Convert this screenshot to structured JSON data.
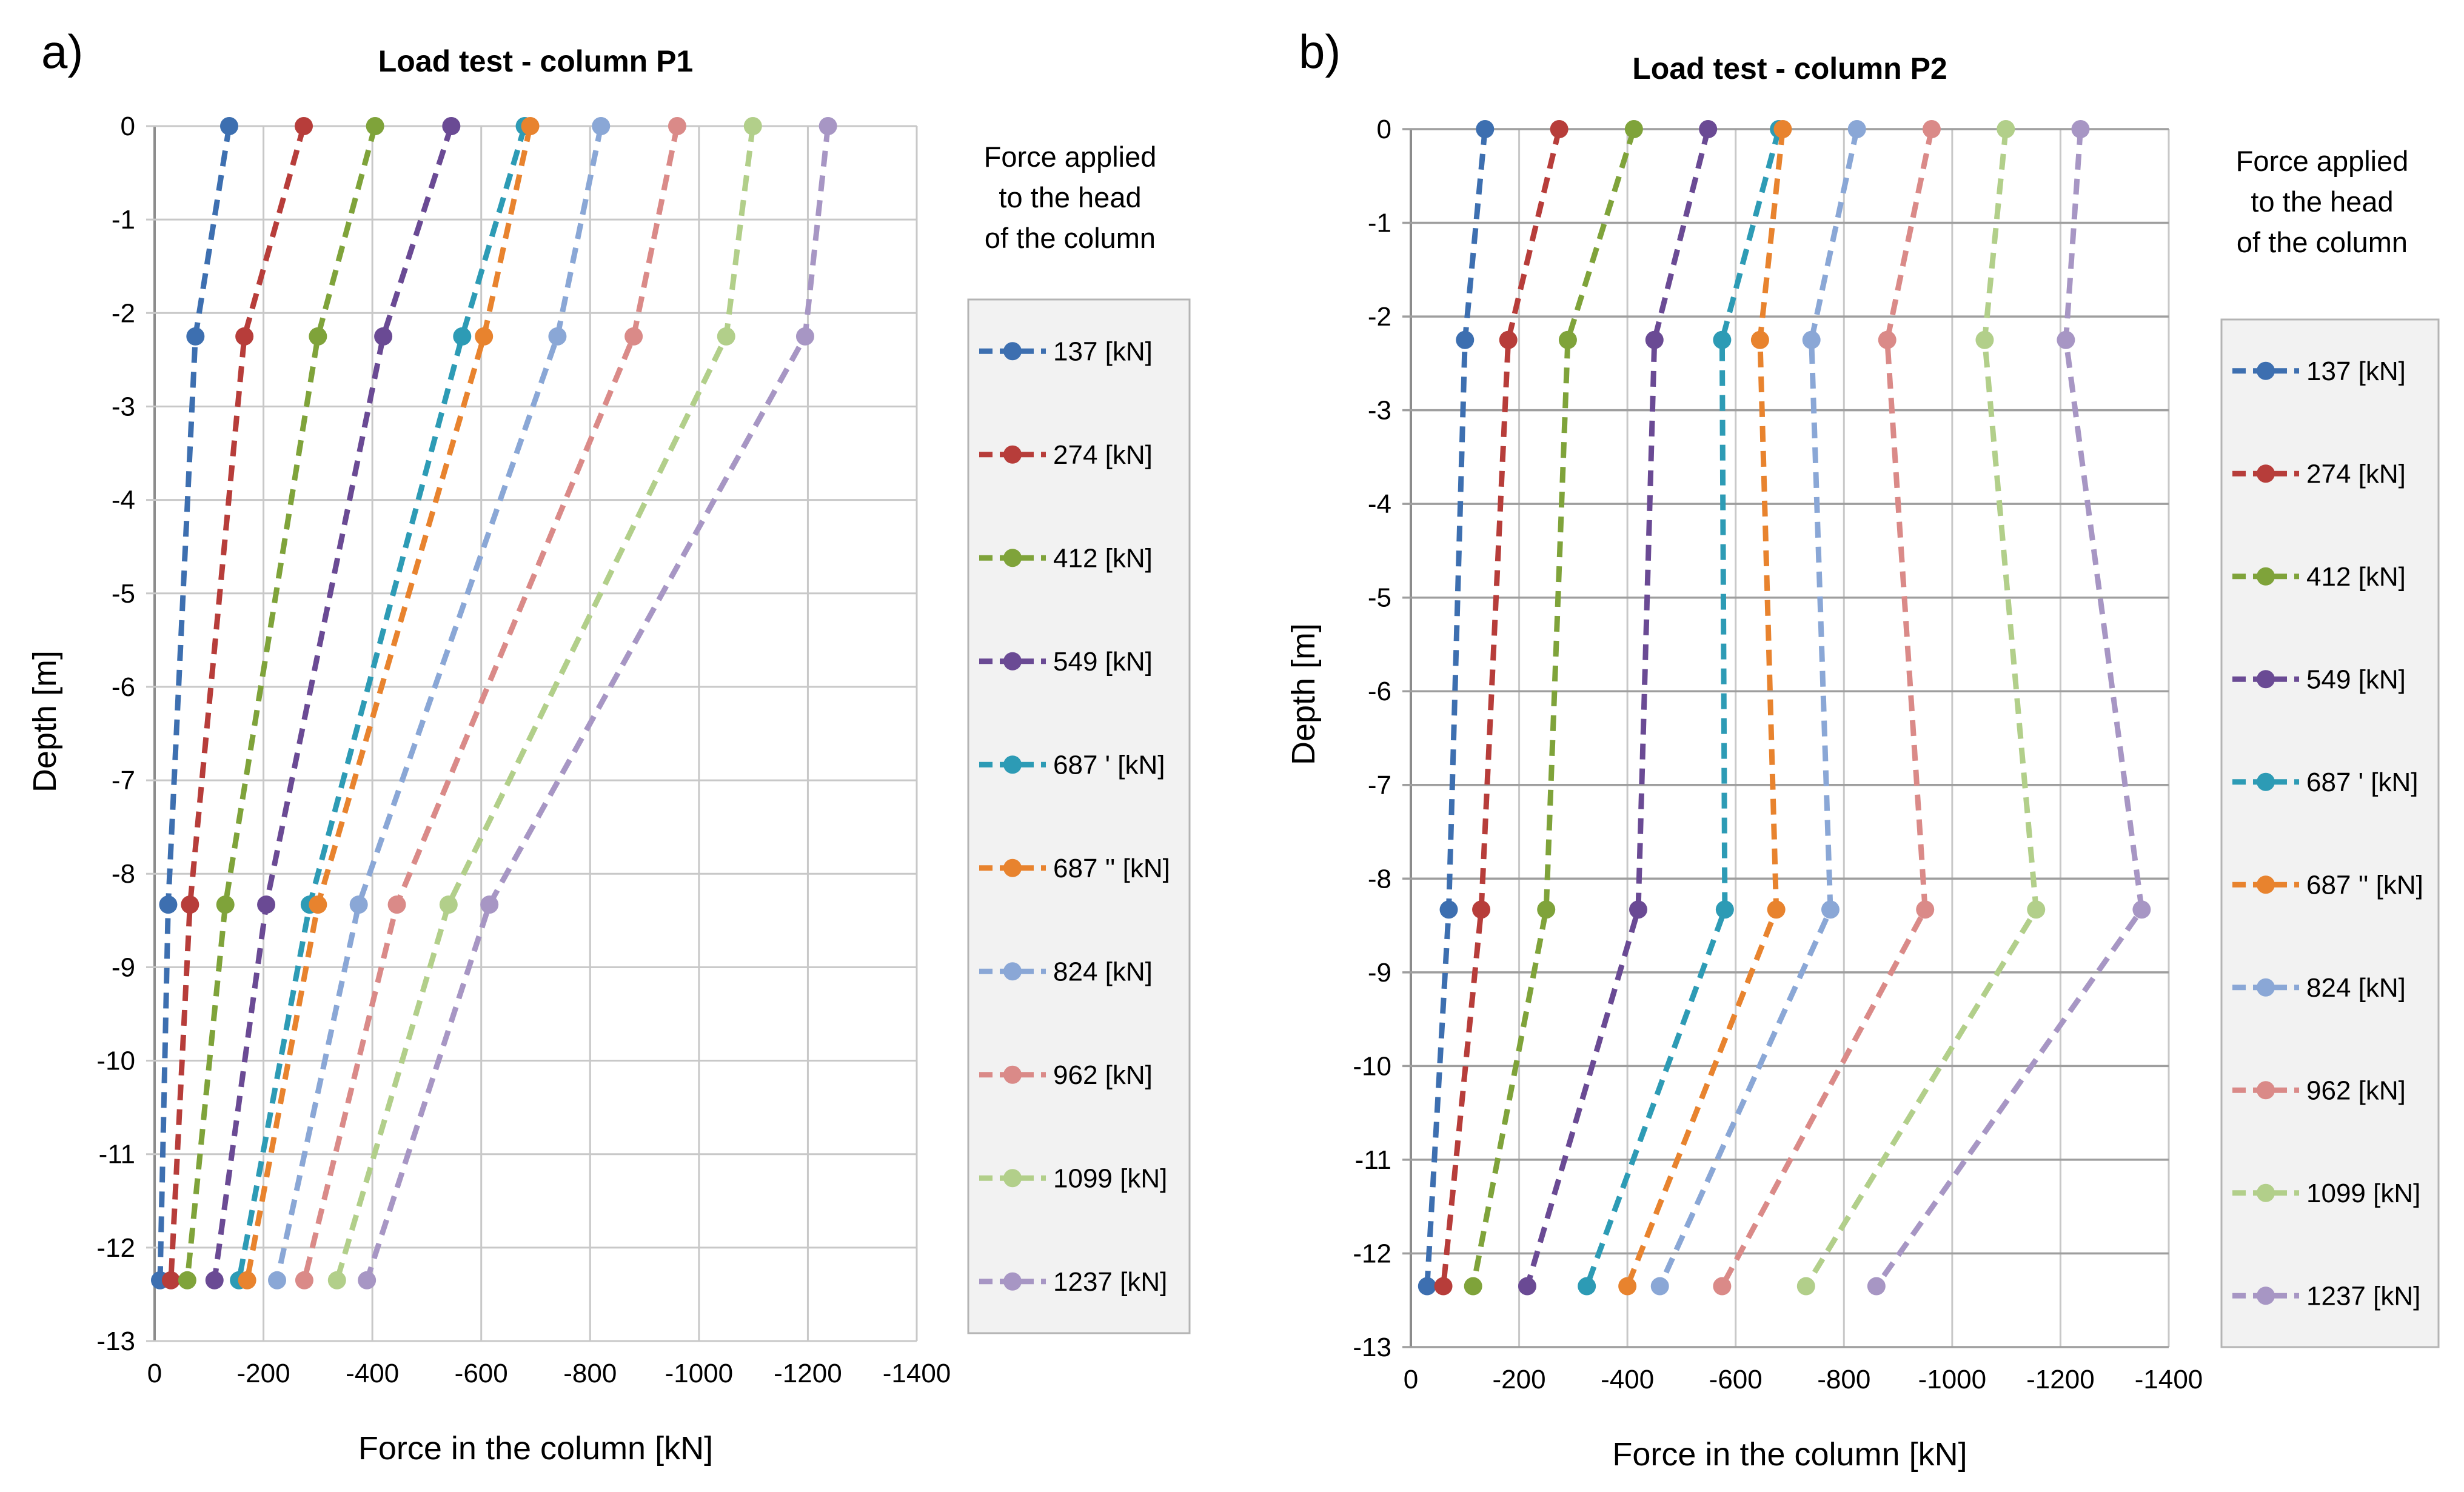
{
  "figure": {
    "xlabel": "Force in the column [kN]",
    "ylabel": "Depth [m]",
    "x_tick_labels": [
      "0",
      "-200",
      "-400",
      "-600",
      "-800",
      "-1000",
      "-1200",
      "-1400"
    ],
    "y_tick_labels": [
      "0",
      "-1",
      "-2",
      "-3",
      "-4",
      "-5",
      "-6",
      "-7",
      "-8",
      "-9",
      "-10",
      "-11",
      "-12",
      "-13"
    ],
    "legend_heading": [
      "Force applied",
      "to the head",
      "of the column"
    ],
    "series_colors": [
      "#3d6fb0",
      "#b73d3a",
      "#7fa33a",
      "#6a4a94",
      "#2d9bb5",
      "#e8832e",
      "#8aa7d6",
      "#da8a88",
      "#b2cf8a",
      "#a796c4"
    ]
  },
  "chart_data": [
    {
      "type": "line",
      "panel_label": "a)",
      "title": "Load test - column P1",
      "xlabel": "Force in the column [kN]",
      "ylabel": "Depth [m]",
      "xlim": [
        0,
        -1400
      ],
      "ylim": [
        -13,
        0
      ],
      "grid": true,
      "legend": "right",
      "depths": [
        0,
        -2.25,
        -8.33,
        -12.35
      ],
      "series": [
        {
          "name": "137 [kN]",
          "x": [
            -137,
            -75,
            -25,
            -10
          ]
        },
        {
          "name": "274 [kN]",
          "x": [
            -274,
            -165,
            -65,
            -30
          ]
        },
        {
          "name": "412 [kN]",
          "x": [
            -405,
            -300,
            -130,
            -60
          ]
        },
        {
          "name": "549 [kN]",
          "x": [
            -545,
            -420,
            -205,
            -110
          ]
        },
        {
          "name": "687 ' [kN]",
          "x": [
            -680,
            -565,
            -285,
            -155
          ]
        },
        {
          "name": "687 '' [kN]",
          "x": [
            -690,
            -605,
            -300,
            -170
          ]
        },
        {
          "name": "824 [kN]",
          "x": [
            -820,
            -740,
            -375,
            -225
          ]
        },
        {
          "name": "962 [kN]",
          "x": [
            -960,
            -880,
            -445,
            -275
          ]
        },
        {
          "name": "1099 [kN]",
          "x": [
            -1099,
            -1050,
            -540,
            -335
          ]
        },
        {
          "name": "1237 [kN]",
          "x": [
            -1237,
            -1195,
            -615,
            -390
          ]
        }
      ]
    },
    {
      "type": "line",
      "panel_label": "b)",
      "title": "Load test - column P2",
      "xlabel": "Force in the column [kN]",
      "ylabel": "Depth [m]",
      "xlim": [
        0,
        -1400
      ],
      "ylim": [
        -13,
        0
      ],
      "grid": true,
      "legend": "right",
      "depths": [
        0,
        -2.25,
        -8.33,
        -12.35
      ],
      "series": [
        {
          "name": "137 [kN]",
          "x": [
            -137,
            -100,
            -70,
            -30
          ]
        },
        {
          "name": "274 [kN]",
          "x": [
            -274,
            -180,
            -130,
            -60
          ]
        },
        {
          "name": "412 [kN]",
          "x": [
            -412,
            -290,
            -250,
            -115
          ]
        },
        {
          "name": "549 [kN]",
          "x": [
            -549,
            -450,
            -420,
            -215
          ]
        },
        {
          "name": "687 ' [kN]",
          "x": [
            -680,
            -575,
            -580,
            -325
          ]
        },
        {
          "name": "687 '' [kN]",
          "x": [
            -687,
            -645,
            -675,
            -400
          ]
        },
        {
          "name": "824 [kN]",
          "x": [
            -824,
            -740,
            -775,
            -460
          ]
        },
        {
          "name": "962 [kN]",
          "x": [
            -962,
            -880,
            -950,
            -575
          ]
        },
        {
          "name": "1099 [kN]",
          "x": [
            -1099,
            -1060,
            -1155,
            -730
          ]
        },
        {
          "name": "1237 [kN]",
          "x": [
            -1237,
            -1210,
            -1350,
            -860
          ]
        }
      ]
    }
  ]
}
